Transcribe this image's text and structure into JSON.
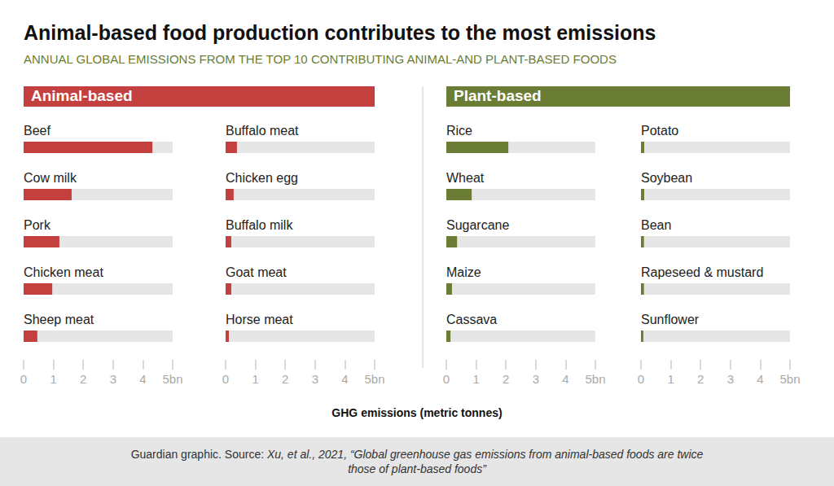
{
  "title": "Animal-based food production contributes to the most emissions",
  "subtitle": "ANNUAL GLOBAL EMISSIONS FROM THE TOP 10 CONTRIBUTING ANIMAL-AND PLANT-BASED FOODS",
  "xlabel": "GHG emissions (metric tonnes)",
  "source_prefix": "Guardian graphic. Source:",
  "source": "Xu, et al., 2021, “Global greenhouse gas emissions from animal-based foods are twice those of plant-based foods”",
  "chart_data": [
    {
      "type": "bar",
      "orientation": "horizontal",
      "group": "Animal-based",
      "color": "#c4403f",
      "categories": [
        "Beef",
        "Cow milk",
        "Pork",
        "Chicken meat",
        "Sheep meat"
      ],
      "values": [
        4.32,
        1.61,
        1.2,
        0.96,
        0.46
      ],
      "xlim": [
        0,
        5
      ],
      "xticks": [
        0,
        1,
        2,
        3,
        4,
        {
          "value": 5,
          "label": "5bn"
        }
      ],
      "grid": false
    },
    {
      "type": "bar",
      "orientation": "horizontal",
      "group": "Animal-based",
      "color": "#c4403f",
      "categories": [
        "Buffalo meat",
        "Chicken egg",
        "Buffalo milk",
        "Goat meat",
        "Horse meat"
      ],
      "values": [
        0.38,
        0.27,
        0.19,
        0.19,
        0.11
      ],
      "xlim": [
        0,
        5
      ],
      "xticks": [
        0,
        1,
        2,
        3,
        4,
        {
          "value": 5,
          "label": "5bn"
        }
      ],
      "grid": false
    },
    {
      "type": "bar",
      "orientation": "horizontal",
      "group": "Plant-based",
      "color": "#6b7d35",
      "categories": [
        "Rice",
        "Wheat",
        "Sugarcane",
        "Maize",
        "Cassava"
      ],
      "values": [
        2.08,
        0.85,
        0.36,
        0.19,
        0.14
      ],
      "xlim": [
        0,
        5
      ],
      "xticks": [
        0,
        1,
        2,
        3,
        4,
        {
          "value": 5,
          "label": "5bn"
        }
      ],
      "grid": false
    },
    {
      "type": "bar",
      "orientation": "horizontal",
      "group": "Plant-based",
      "color": "#6b7d35",
      "categories": [
        "Potato",
        "Soybean",
        "Bean",
        "Rapeseed & mustard",
        "Sunflower"
      ],
      "values": [
        0.11,
        0.11,
        0.1,
        0.1,
        0.08
      ],
      "xlim": [
        0,
        5
      ],
      "xticks": [
        0,
        1,
        2,
        3,
        4,
        {
          "value": 5,
          "label": "5bn"
        }
      ],
      "grid": false
    }
  ]
}
